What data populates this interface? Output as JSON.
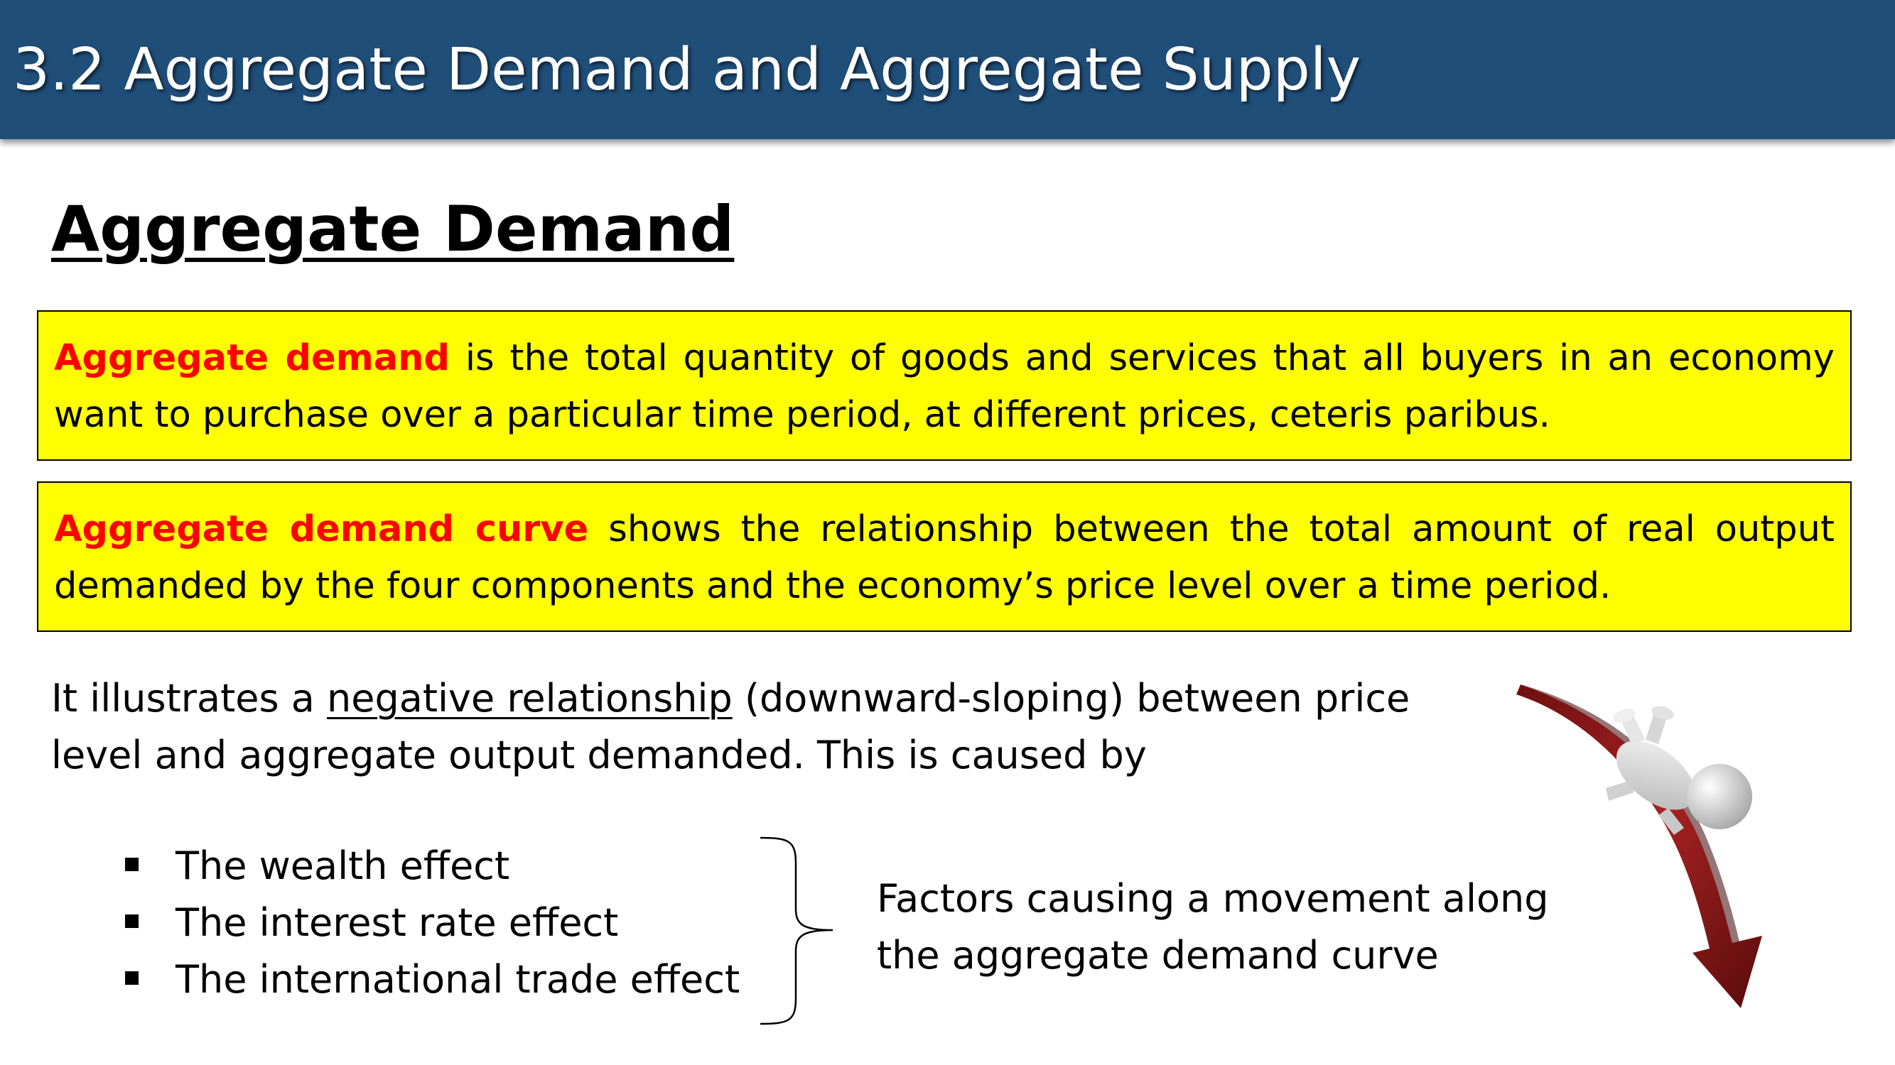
{
  "header": {
    "title": "3.2 Aggregate Demand and Aggregate Supply"
  },
  "section": {
    "heading": "Aggregate Demand"
  },
  "definitions": [
    {
      "term": "Aggregate demand",
      "text": " is the total quantity of goods and services that all buyers in an economy want to purchase over a particular time period, at different prices, ceteris paribus."
    },
    {
      "term": "Aggregate demand curve",
      "text": " shows the relationship between the total amount of real output demanded by the four components and the economy’s price level over a time period."
    }
  ],
  "explanation": {
    "before": "It illustrates a ",
    "underlined": "negative relationship",
    "after": " (downward-sloping) between price level and aggregate output demanded. This is caused by"
  },
  "effects": [
    "The wealth effect",
    "The interest rate effect",
    "The international trade effect"
  ],
  "factors_note": {
    "line1": "Factors causing a movement along",
    "line2": "the aggregate demand curve"
  },
  "illustration": {
    "icon": "falling-figure-on-downward-arrow-icon"
  },
  "colors": {
    "title_bar": "#1f4e79",
    "definition_box": "#ffff00",
    "term_text": "#ff0000",
    "arrow": "#8b1a1a"
  }
}
